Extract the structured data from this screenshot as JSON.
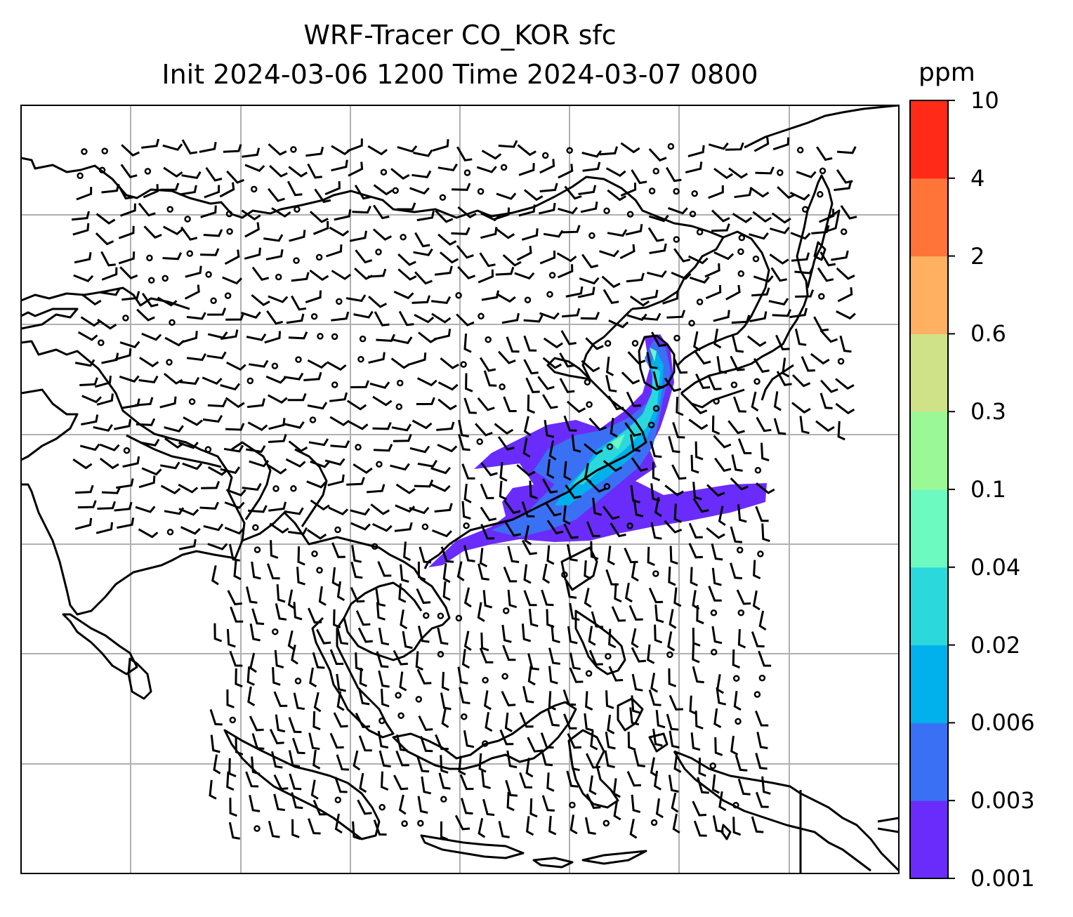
{
  "header": {
    "title_line1": "WRF-Tracer CO_KOR sfc",
    "title_line2": "Init 2024-03-06 1200 Time 2024-03-07 0800"
  },
  "colorbar": {
    "unit": "ppm",
    "levels": [
      "0.001",
      "0.003",
      "0.006",
      "0.02",
      "0.04",
      "0.1",
      "0.3",
      "0.6",
      "2",
      "4",
      "10"
    ],
    "colors": [
      "#6a2cfb",
      "#3a71f4",
      "#00b1eb",
      "#2bd9dc",
      "#6cfac1",
      "#9af996",
      "#cfe287",
      "#ffb060",
      "#ff7439",
      "#ff2a17"
    ]
  },
  "map": {
    "gridlines": true,
    "features": [
      "coastlines",
      "wind-barbs",
      "tracer-plume"
    ]
  }
}
